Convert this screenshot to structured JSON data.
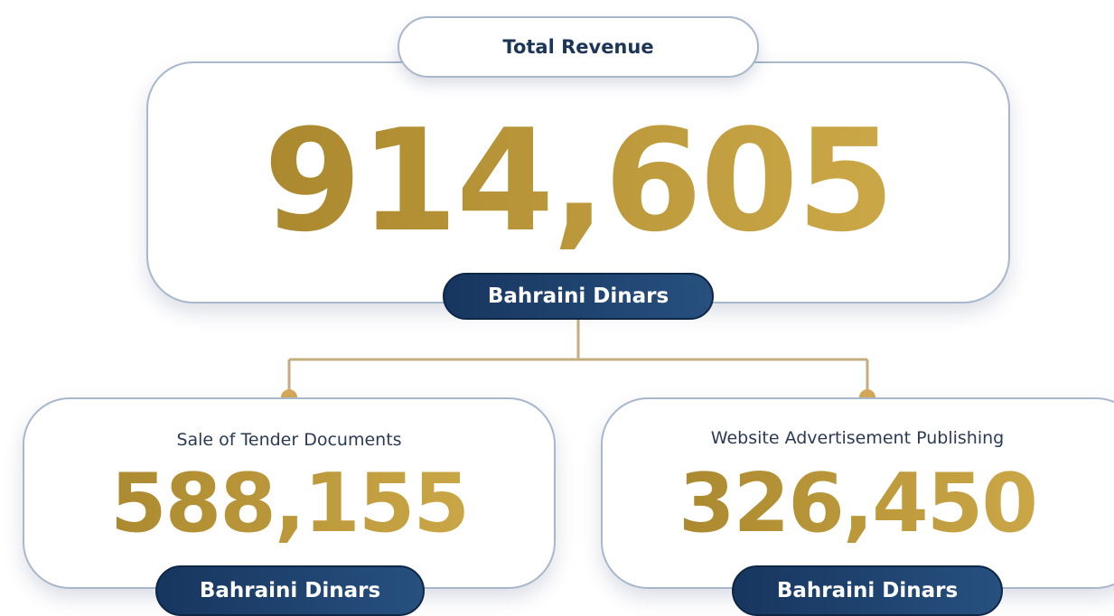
{
  "header": {
    "title": "Total Revenue"
  },
  "total": {
    "value": "914,605",
    "unit": "Bahraini Dinars"
  },
  "items": [
    {
      "label": "Sale of Tender Documents",
      "value": "588,155",
      "unit": "Bahraini Dinars"
    },
    {
      "label": "Website Advertisement Publishing",
      "value": "326,450",
      "unit": "Bahraini Dinars"
    }
  ]
}
